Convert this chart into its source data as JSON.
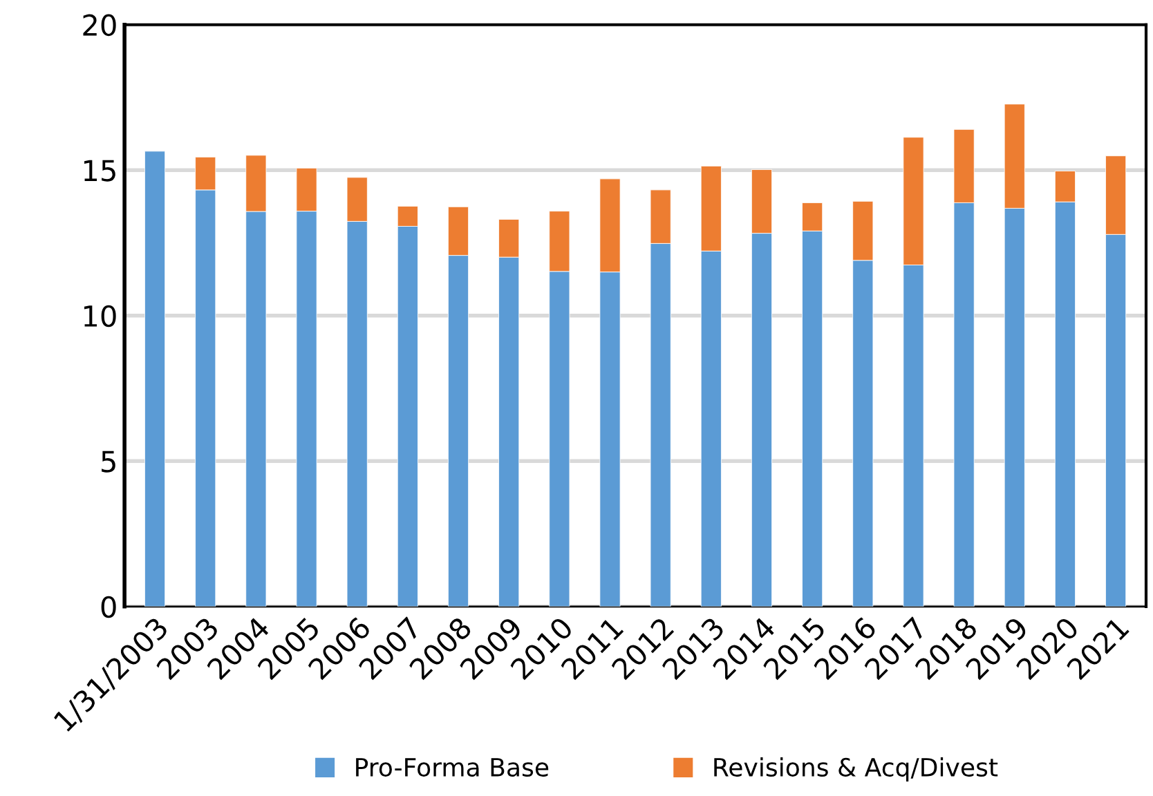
{
  "chart_data": {
    "type": "bar",
    "stacked": true,
    "categories": [
      "1/31/2003",
      "2003",
      "2004",
      "2005",
      "2006",
      "2007",
      "2008",
      "2009",
      "2010",
      "2011",
      "2012",
      "2013",
      "2014",
      "2015",
      "2016",
      "2017",
      "2018",
      "2019",
      "2020",
      "2021"
    ],
    "series": [
      {
        "name": "Pro-Forma Base",
        "color": "#5b9bd5",
        "values": [
          15.65,
          14.32,
          13.58,
          13.59,
          13.24,
          13.07,
          12.07,
          12.01,
          11.52,
          11.5,
          12.48,
          12.22,
          12.83,
          12.91,
          11.9,
          11.74,
          13.88,
          13.69,
          13.91,
          12.79
        ]
      },
      {
        "name": "Revisions & Acq/Divest",
        "color": "#ed7d31",
        "values": [
          null,
          1.13,
          1.93,
          1.48,
          1.51,
          0.69,
          1.67,
          1.3,
          2.07,
          3.2,
          1.84,
          2.92,
          2.19,
          0.97,
          2.03,
          4.39,
          2.52,
          3.58,
          1.06,
          2.7
        ]
      }
    ],
    "ylim": [
      0,
      20
    ],
    "yticks": [
      0,
      5,
      10,
      15,
      20
    ],
    "grid": "y",
    "legend": "bottom"
  }
}
